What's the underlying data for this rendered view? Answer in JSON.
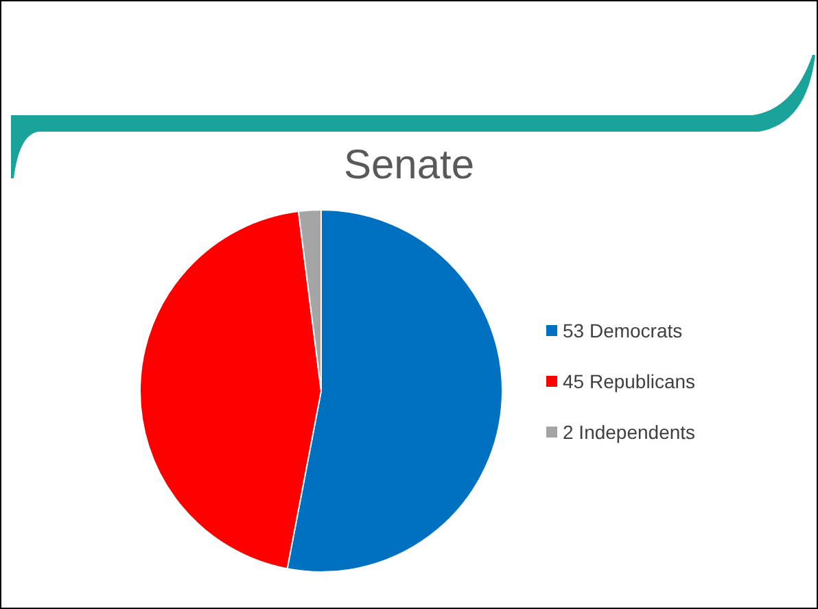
{
  "chart_data": {
    "type": "pie",
    "title": "Senate",
    "categories": [
      "53 Democrats",
      "45 Republicans",
      "2 Independents"
    ],
    "values": [
      53,
      45,
      2
    ],
    "colors": [
      "#0070c0",
      "#ff0000",
      "#a5a5a5"
    ],
    "legend": "right"
  }
}
